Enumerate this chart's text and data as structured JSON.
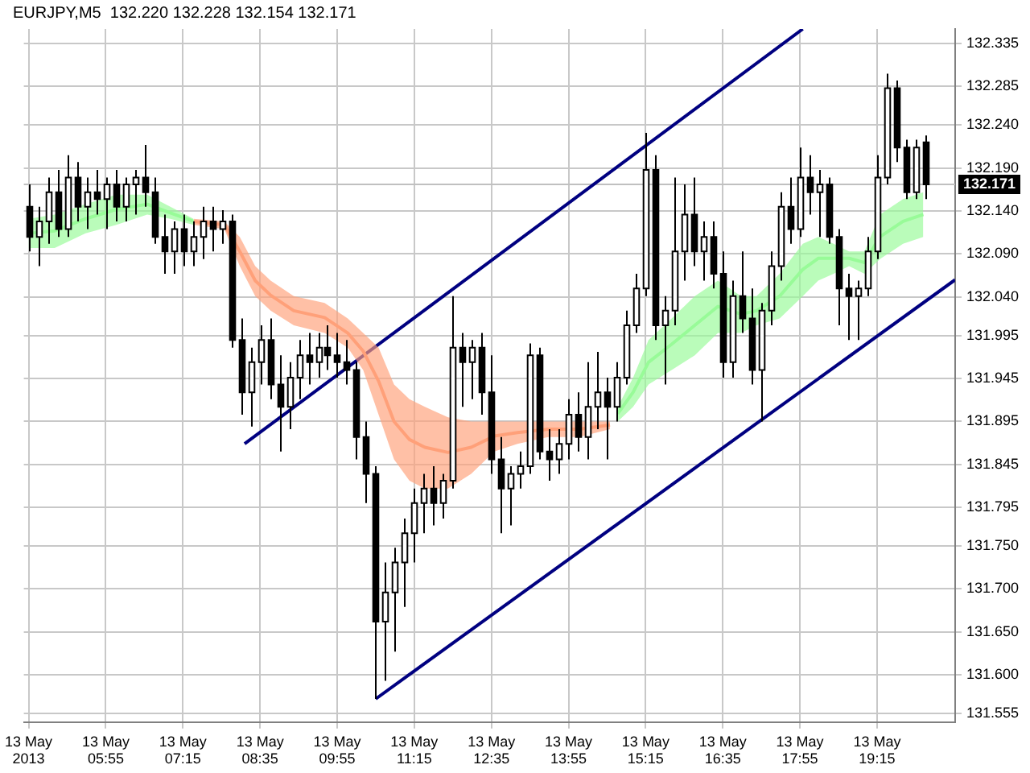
{
  "chart_data": {
    "type": "candlestick",
    "title": "EURJPY,M5  132.220 132.228 132.154 132.171",
    "xlim": [
      "2013-05-13T04:30",
      "2013-05-13T20:36"
    ],
    "ylim": [
      131.545,
      132.352
    ],
    "xticks": [
      {
        "value": "2013-05-13T04:35",
        "label": "13 May 2013"
      },
      {
        "value": "2013-05-13T05:55",
        "label": "13 May 05:55"
      },
      {
        "value": "2013-05-13T07:15",
        "label": "13 May 07:15"
      },
      {
        "value": "2013-05-13T08:35",
        "label": "13 May 08:35"
      },
      {
        "value": "2013-05-13T09:55",
        "label": "13 May 09:55"
      },
      {
        "value": "2013-05-13T11:15",
        "label": "13 May 11:15"
      },
      {
        "value": "2013-05-13T12:35",
        "label": "13 May 12:35"
      },
      {
        "value": "2013-05-13T13:55",
        "label": "13 May 13:55"
      },
      {
        "value": "2013-05-13T15:15",
        "label": "13 May 15:15"
      },
      {
        "value": "2013-05-13T16:35",
        "label": "13 May 16:35"
      },
      {
        "value": "2013-05-13T17:55",
        "label": "13 May 17:55"
      },
      {
        "value": "2013-05-13T19:15",
        "label": "13 May 19:15"
      }
    ],
    "yticks": [
      131.555,
      {
        "value": 131.6,
        "label": "131.600"
      },
      {
        "value": 131.65,
        "label": "131.650"
      },
      {
        "value": 131.7,
        "label": "131.700"
      },
      {
        "value": 131.75,
        "label": "131.750"
      },
      131.795,
      131.845,
      131.895,
      131.945,
      131.995,
      {
        "value": 132.04,
        "label": "132.040"
      },
      {
        "value": 132.09,
        "label": "132.090"
      },
      {
        "value": 132.14,
        "label": "132.140"
      },
      {
        "value": 132.19,
        "label": "132.190"
      },
      {
        "value": 132.24,
        "label": "132.240"
      },
      132.285,
      132.335
    ],
    "grid": true,
    "legend": false,
    "ref_lines": [
      {
        "axis": "y",
        "value": 132.171,
        "label": "132.171",
        "color": "#c0c0c0"
      }
    ],
    "series": [
      {
        "color": "#000000",
        "colors": [
          "#000000",
          "#ffffff",
          "#ffffff",
          "#000000",
          "#ffffff",
          "#000000",
          "#ffffff",
          "#000000",
          "#ffffff",
          "#000000",
          "#ffffff",
          "#ffffff",
          "#000000",
          "#000000",
          "#000000",
          "#ffffff",
          "#000000",
          "#ffffff",
          "#ffffff",
          "#000000",
          "#ffffff",
          "#000000",
          "#000000",
          "#ffffff",
          "#ffffff",
          "#000000",
          "#000000",
          "#ffffff",
          "#ffffff",
          "#000000",
          "#ffffff",
          "#000000",
          "#000000",
          "#000000",
          "#000000",
          "#000000",
          "#000000",
          "#ffffff",
          "#ffffff",
          "#ffffff",
          "#ffffff",
          "#ffffff",
          "#000000",
          "#ffffff",
          "#ffffff",
          "#000000",
          "#ffffff",
          "#000000",
          "#000000",
          "#000000",
          "#ffffff",
          "#ffffff",
          "#ffffff",
          "#000000",
          "#000000",
          "#ffffff",
          "#ffffff",
          "#000000",
          "#ffffff",
          "#ffffff",
          "#000000",
          "#ffffff",
          "#ffffff",
          "#ffffff",
          "#ffffff",
          "#000000",
          "#ffffff",
          "#ffffff",
          "#ffffff",
          "#000000",
          "#ffffff",
          "#000000",
          "#000000",
          "#ffffff",
          "#000000",
          "#000000",
          "#ffffff",
          "#ffffff",
          "#ffffff",
          "#000000",
          "#ffffff",
          "#000000",
          "#ffffff",
          "#000000",
          "#000000",
          "#000000",
          "#ffffff",
          "#ffffff",
          "#ffffff",
          "#ffffff",
          "#000000",
          "#000000",
          "#ffffff",
          "#000000"
        ],
        "x": [
          "2013-05-13T04:35",
          "2013-05-13T04:45",
          "2013-05-13T04:55",
          "2013-05-13T05:05",
          "2013-05-13T05:15",
          "2013-05-13T05:25",
          "2013-05-13T05:35",
          "2013-05-13T05:45",
          "2013-05-13T05:55",
          "2013-05-13T06:05",
          "2013-05-13T06:15",
          "2013-05-13T06:25",
          "2013-05-13T06:35",
          "2013-05-13T06:45",
          "2013-05-13T06:55",
          "2013-05-13T07:05",
          "2013-05-13T07:15",
          "2013-05-13T07:25",
          "2013-05-13T07:35",
          "2013-05-13T07:45",
          "2013-05-13T07:55",
          "2013-05-13T08:05",
          "2013-05-13T08:15",
          "2013-05-13T08:25",
          "2013-05-13T08:35",
          "2013-05-13T08:45",
          "2013-05-13T08:55",
          "2013-05-13T09:05",
          "2013-05-13T09:15",
          "2013-05-13T09:25",
          "2013-05-13T09:35",
          "2013-05-13T09:45",
          "2013-05-13T09:55",
          "2013-05-13T10:05",
          "2013-05-13T10:15",
          "2013-05-13T10:25",
          "2013-05-13T10:35",
          "2013-05-13T10:45",
          "2013-05-13T10:55",
          "2013-05-13T11:05",
          "2013-05-13T11:15",
          "2013-05-13T11:25",
          "2013-05-13T11:35",
          "2013-05-13T11:45",
          "2013-05-13T11:55",
          "2013-05-13T12:05",
          "2013-05-13T12:15",
          "2013-05-13T12:25",
          "2013-05-13T12:35",
          "2013-05-13T12:45",
          "2013-05-13T12:55",
          "2013-05-13T13:05",
          "2013-05-13T13:15",
          "2013-05-13T13:25",
          "2013-05-13T13:35",
          "2013-05-13T13:45",
          "2013-05-13T13:55",
          "2013-05-13T14:05",
          "2013-05-13T14:15",
          "2013-05-13T14:25",
          "2013-05-13T14:35",
          "2013-05-13T14:45",
          "2013-05-13T14:55",
          "2013-05-13T15:05",
          "2013-05-13T15:15",
          "2013-05-13T15:25",
          "2013-05-13T15:35",
          "2013-05-13T15:45",
          "2013-05-13T15:55",
          "2013-05-13T16:05",
          "2013-05-13T16:15",
          "2013-05-13T16:25",
          "2013-05-13T16:35",
          "2013-05-13T16:45",
          "2013-05-13T16:55",
          "2013-05-13T17:05",
          "2013-05-13T17:15",
          "2013-05-13T17:25",
          "2013-05-13T17:35",
          "2013-05-13T17:45",
          "2013-05-13T17:55",
          "2013-05-13T18:05",
          "2013-05-13T18:15",
          "2013-05-13T18:25",
          "2013-05-13T18:35",
          "2013-05-13T18:45",
          "2013-05-13T18:55",
          "2013-05-13T19:05",
          "2013-05-13T19:15",
          "2013-05-13T19:25",
          "2013-05-13T19:35",
          "2013-05-13T19:45",
          "2013-05-13T19:55",
          "2013-05-13T20:05"
        ],
        "ohlc": [
          [
            132.145,
            132.171,
            132.093,
            132.11
          ],
          [
            132.11,
            132.145,
            132.076,
            132.128
          ],
          [
            132.128,
            132.179,
            132.102,
            132.162
          ],
          [
            132.162,
            132.188,
            132.11,
            132.119
          ],
          [
            132.119,
            132.205,
            132.11,
            132.179
          ],
          [
            132.179,
            132.197,
            132.128,
            132.145
          ],
          [
            132.145,
            132.179,
            132.119,
            132.162
          ],
          [
            132.162,
            132.188,
            132.136,
            132.154
          ],
          [
            132.154,
            132.179,
            132.119,
            132.171
          ],
          [
            132.171,
            132.188,
            132.128,
            132.145
          ],
          [
            132.145,
            132.179,
            132.128,
            132.171
          ],
          [
            132.171,
            132.188,
            132.136,
            132.179
          ],
          [
            132.179,
            132.217,
            132.145,
            132.162
          ],
          [
            132.162,
            132.179,
            132.102,
            132.11
          ],
          [
            132.11,
            132.136,
            132.067,
            132.093
          ],
          [
            132.093,
            132.128,
            132.067,
            132.119
          ],
          [
            132.119,
            132.136,
            132.076,
            132.093
          ],
          [
            132.093,
            132.128,
            132.076,
            132.11
          ],
          [
            132.11,
            132.145,
            132.084,
            132.128
          ],
          [
            132.128,
            132.145,
            132.093,
            132.119
          ],
          [
            132.119,
            132.141,
            132.102,
            132.128
          ],
          [
            132.128,
            132.136,
            131.981,
            131.99
          ],
          [
            131.99,
            132.015,
            131.903,
            131.929
          ],
          [
            131.929,
            131.981,
            131.889,
            131.964
          ],
          [
            131.964,
            132.007,
            131.938,
            131.99
          ],
          [
            131.99,
            132.015,
            131.921,
            131.938
          ],
          [
            131.938,
            131.972,
            131.86,
            131.912
          ],
          [
            131.912,
            131.964,
            131.886,
            131.946
          ],
          [
            131.946,
            131.99,
            131.921,
            131.972
          ],
          [
            131.972,
            131.998,
            131.938,
            131.964
          ],
          [
            131.964,
            131.998,
            131.946,
            131.981
          ],
          [
            131.981,
            132.007,
            131.955,
            131.972
          ],
          [
            131.972,
            131.998,
            131.946,
            131.964
          ],
          [
            131.964,
            131.99,
            131.938,
            131.955
          ],
          [
            131.955,
            131.964,
            131.851,
            131.877
          ],
          [
            131.877,
            131.895,
            131.8,
            131.834
          ],
          [
            131.834,
            131.843,
            131.572,
            131.662
          ],
          [
            131.662,
            131.731,
            131.593,
            131.696
          ],
          [
            131.696,
            131.748,
            131.627,
            131.731
          ],
          [
            131.731,
            131.782,
            131.679,
            131.765
          ],
          [
            131.765,
            131.817,
            131.731,
            131.8
          ],
          [
            131.8,
            131.834,
            131.765,
            131.817
          ],
          [
            131.817,
            131.843,
            131.774,
            131.8
          ],
          [
            131.8,
            131.834,
            131.782,
            131.826
          ],
          [
            131.826,
            132.041,
            131.817,
            131.981
          ],
          [
            131.981,
            131.998,
            131.912,
            131.964
          ],
          [
            131.964,
            131.99,
            131.921,
            131.981
          ],
          [
            131.981,
            131.998,
            131.903,
            131.929
          ],
          [
            131.929,
            131.972,
            131.834,
            131.851
          ],
          [
            131.851,
            131.877,
            131.765,
            131.817
          ],
          [
            131.817,
            131.843,
            131.774,
            131.834
          ],
          [
            131.834,
            131.86,
            131.817,
            131.843
          ],
          [
            131.843,
            131.986,
            131.834,
            131.972
          ],
          [
            131.972,
            131.981,
            131.851,
            131.86
          ],
          [
            131.86,
            131.886,
            131.826,
            131.851
          ],
          [
            131.851,
            131.886,
            131.834,
            131.869
          ],
          [
            131.869,
            131.921,
            131.851,
            131.903
          ],
          [
            131.903,
            131.929,
            131.86,
            131.877
          ],
          [
            131.877,
            131.964,
            131.851,
            131.912
          ],
          [
            131.912,
            131.976,
            131.886,
            131.929
          ],
          [
            131.929,
            131.946,
            131.851,
            131.912
          ],
          [
            131.912,
            131.964,
            131.895,
            131.946
          ],
          [
            131.946,
            132.024,
            131.938,
            132.007
          ],
          [
            132.007,
            132.067,
            131.998,
            132.05
          ],
          [
            132.05,
            132.231,
            132.041,
            132.188
          ],
          [
            132.188,
            132.205,
            131.99,
            132.007
          ],
          [
            132.007,
            132.041,
            131.938,
            132.024
          ],
          [
            132.024,
            132.179,
            132.007,
            132.093
          ],
          [
            132.093,
            132.171,
            132.059,
            132.136
          ],
          [
            132.136,
            132.179,
            132.076,
            132.093
          ],
          [
            132.093,
            132.128,
            132.059,
            132.11
          ],
          [
            132.11,
            132.128,
            132.05,
            132.067
          ],
          [
            132.067,
            132.093,
            131.946,
            131.964
          ],
          [
            131.964,
            132.059,
            131.946,
            132.041
          ],
          [
            132.041,
            132.093,
            131.998,
            132.015
          ],
          [
            132.015,
            132.05,
            131.938,
            131.955
          ],
          [
            131.955,
            132.033,
            131.895,
            132.024
          ],
          [
            132.024,
            132.093,
            132.007,
            132.076
          ],
          [
            132.076,
            132.162,
            132.059,
            132.145
          ],
          [
            132.145,
            132.179,
            132.102,
            132.119
          ],
          [
            132.119,
            132.214,
            132.11,
            132.179
          ],
          [
            132.179,
            132.205,
            132.136,
            132.162
          ],
          [
            132.162,
            132.188,
            132.11,
            132.171
          ],
          [
            132.171,
            132.179,
            132.102,
            132.11
          ],
          [
            132.11,
            132.119,
            132.007,
            132.05
          ],
          [
            132.05,
            132.067,
            131.99,
            132.041
          ],
          [
            132.041,
            132.059,
            131.99,
            132.05
          ],
          [
            132.05,
            132.11,
            132.041,
            132.093
          ],
          [
            132.093,
            132.205,
            132.084,
            132.179
          ],
          [
            132.179,
            132.3,
            132.171,
            132.283
          ],
          [
            132.283,
            132.292,
            132.197,
            132.214
          ],
          [
            132.214,
            132.223,
            132.154,
            132.162
          ],
          [
            132.162,
            132.223,
            132.154,
            132.214
          ],
          [
            132.22,
            132.228,
            132.154,
            132.171
          ]
        ]
      },
      {
        "type": "line",
        "color": "#98fb98",
        "x": [
          "2013-05-13T04:35",
          "2013-05-13T05:02",
          "2013-05-13T05:34",
          "2013-05-13T06:06",
          "2013-05-13T06:38",
          "2013-05-13T07:02",
          "2013-05-13T07:26"
        ],
        "values": [
          132.114,
          132.117,
          132.131,
          132.142,
          132.148,
          132.138,
          132.128
        ],
        "upper": [
          132.131,
          132.136,
          132.148,
          132.159,
          132.159,
          132.145,
          132.131
        ],
        "lower": [
          132.097,
          132.097,
          132.114,
          132.124,
          132.136,
          132.131,
          132.124
        ]
      },
      {
        "type": "line",
        "color": "#ffa07a",
        "x": [
          "2013-05-13T07:26",
          "2013-05-13T07:58",
          "2013-05-13T08:14",
          "2013-05-13T08:30",
          "2013-05-13T08:46",
          "2013-05-13T09:10",
          "2013-05-13T09:42",
          "2013-05-13T10:06",
          "2013-05-13T10:22",
          "2013-05-13T10:38",
          "2013-05-13T10:54",
          "2013-05-13T11:10",
          "2013-05-13T11:26",
          "2013-05-13T11:50",
          "2013-05-13T12:14",
          "2013-05-13T12:38",
          "2013-05-13T13:02",
          "2013-05-13T13:34",
          "2013-05-13T14:06",
          "2013-05-13T14:38"
        ],
        "values": [
          132.128,
          132.124,
          132.093,
          132.059,
          132.042,
          132.024,
          132.016,
          131.998,
          131.977,
          131.942,
          131.895,
          131.874,
          131.865,
          131.859,
          131.865,
          131.878,
          131.882,
          131.886,
          131.886,
          131.891
        ],
        "upper": [
          132.131,
          132.128,
          132.11,
          132.076,
          132.059,
          132.041,
          132.033,
          132.015,
          131.998,
          131.981,
          131.938,
          131.921,
          131.912,
          131.9,
          131.895,
          131.895,
          131.895,
          131.895,
          131.895,
          131.895
        ],
        "lower": [
          132.124,
          132.119,
          132.076,
          132.041,
          132.024,
          132.007,
          131.998,
          131.981,
          131.955,
          131.903,
          131.851,
          131.826,
          131.817,
          131.817,
          131.834,
          131.86,
          131.869,
          131.877,
          131.877,
          131.886
        ]
      },
      {
        "type": "line",
        "color": "#98fb98",
        "x": [
          "2013-05-13T14:46",
          "2013-05-13T15:02",
          "2013-05-13T15:18",
          "2013-05-13T15:42",
          "2013-05-13T16:06",
          "2013-05-13T16:30",
          "2013-05-13T16:54",
          "2013-05-13T17:10",
          "2013-05-13T17:34",
          "2013-05-13T17:58",
          "2013-05-13T18:14",
          "2013-05-13T18:30",
          "2013-05-13T18:46",
          "2013-05-13T19:02",
          "2013-05-13T19:18",
          "2013-05-13T19:42",
          "2013-05-13T20:03"
        ],
        "values": [
          131.904,
          131.929,
          131.964,
          131.985,
          132.007,
          132.029,
          132.02,
          132.024,
          132.041,
          132.072,
          132.085,
          132.085,
          132.085,
          132.08,
          132.11,
          132.128,
          132.136
        ],
        "upper": [
          131.912,
          131.946,
          131.99,
          132.015,
          132.041,
          132.059,
          132.041,
          132.041,
          132.067,
          132.102,
          132.11,
          132.102,
          132.093,
          132.093,
          132.136,
          132.154,
          132.162
        ],
        "lower": [
          131.895,
          131.912,
          131.938,
          131.955,
          131.972,
          131.998,
          131.998,
          132.007,
          132.015,
          132.041,
          132.059,
          132.067,
          132.076,
          132.067,
          132.084,
          132.102,
          132.11
        ]
      },
      {
        "type": "line",
        "color": "#000080",
        "x": [
          "2013-05-13T08:19",
          "2013-05-13T17:58"
        ],
        "values": [
          131.869,
          132.352
        ]
      },
      {
        "type": "line",
        "color": "#000080",
        "x": [
          "2013-05-13T10:35",
          "2013-05-13T20:36"
        ],
        "values": [
          131.572,
          132.06
        ]
      }
    ]
  }
}
